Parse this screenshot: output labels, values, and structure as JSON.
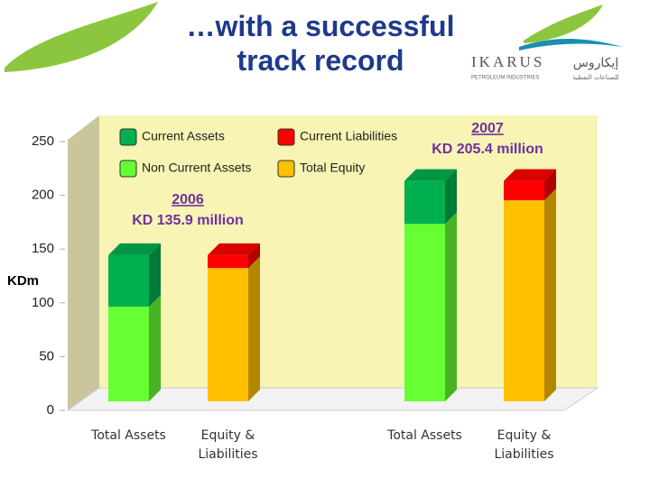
{
  "title": "…with a successful track record",
  "logo": {
    "name": "IKARUS",
    "name_arabic": "إيكاروس",
    "subtitle": "PETROLEUM INDUSTRIES",
    "subtitle_arabic": "للصناعات النفطية"
  },
  "chart_data": {
    "type": "stacked-bar-3d",
    "y_label": "KDm",
    "categories": [
      "Total Assets",
      "Equity & Liabilities",
      "Total Assets",
      "Equity & Liabilities"
    ],
    "series": [
      {
        "name": "Non Current Assets",
        "color": "#66ff33",
        "values": [
          88,
          null,
          165,
          null
        ]
      },
      {
        "name": "Total Equity",
        "color": "#ffc000",
        "values": [
          null,
          124,
          null,
          187
        ]
      },
      {
        "name": "Current Assets",
        "color": "#00b050",
        "values": [
          48,
          null,
          40,
          null
        ]
      },
      {
        "name": "Current Liabilities",
        "color": "#ff0000",
        "values": [
          null,
          12,
          null,
          18
        ]
      }
    ],
    "annotations": [
      {
        "year": "2006",
        "text": "KD 135.9 million"
      },
      {
        "year": "2007",
        "text": "KD 205.4 million"
      }
    ],
    "ylim": [
      0,
      250
    ],
    "yticks": [
      0,
      50,
      100,
      150,
      200,
      250
    ]
  }
}
